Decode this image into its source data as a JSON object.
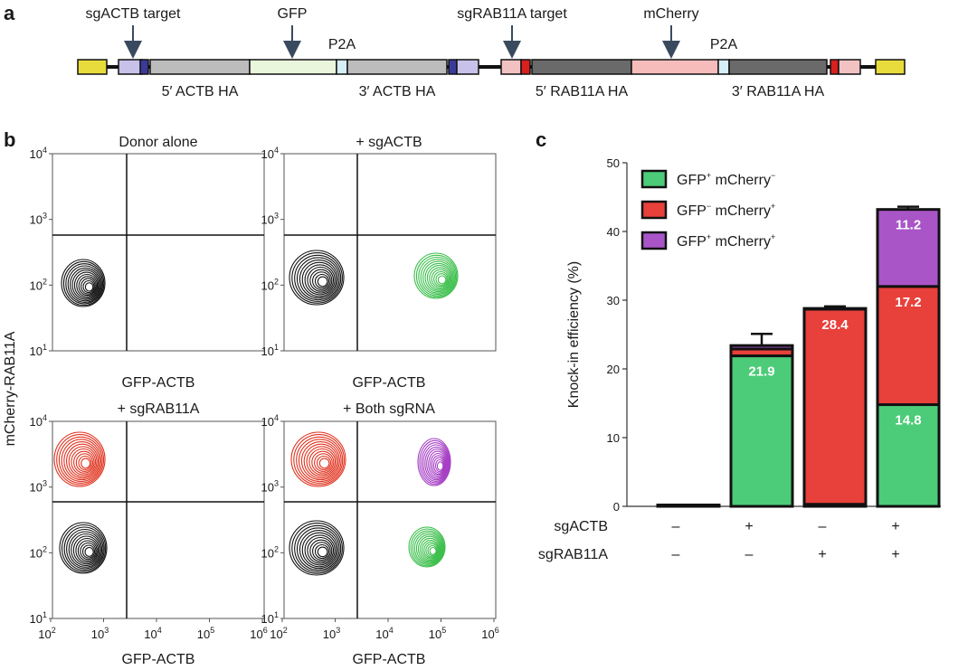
{
  "panel_a": {
    "letter": "a",
    "labels": {
      "sgactb_target": "sgACTB target",
      "gfp": "GFP",
      "p2a_1": "P2A",
      "sgrab11a_target": "sgRAB11A target",
      "mcherry": "mCherry",
      "p2a_2": "P2A",
      "actb_5ha": "5′ ACTB HA",
      "actb_3ha": "3′ ACTB HA",
      "rab11a_5ha": "5′ RAB11A HA",
      "rab11a_3ha": "3′ RAB11A HA"
    },
    "colors": {
      "itr": "#e8dc3c",
      "guide": "#c8c2ea",
      "guide_dark": "#3a3a9a",
      "actb_ha": "#bcbcbc",
      "gfp": "#eaf6dc",
      "p2a": "#d6eef8",
      "rab_guide": "#f2c2c2",
      "rab_guide_dark": "#d8201e",
      "rab_ha": "#6a6a6a",
      "mcherry": "#f6bcbc"
    }
  },
  "panel_b": {
    "letter": "b",
    "ylabel": "mCherry-RAB11A",
    "xlabel": "GFP-ACTB",
    "x_ticks": [
      "10",
      "10",
      "10",
      "10",
      "10"
    ],
    "x_tick_exponents": [
      "2",
      "3",
      "4",
      "5",
      "6"
    ],
    "y_ticks": [
      "10",
      "10",
      "10",
      "10"
    ],
    "y_tick_exponents": [
      "1",
      "2",
      "3",
      "4"
    ],
    "plots": [
      {
        "title": "Donor alone",
        "xlabel": "GFP-ACTB"
      },
      {
        "title": "+ sgACTB",
        "xlabel": "GFP-ACTB"
      },
      {
        "title": "+ sgRAB11A",
        "xlabel": "GFP-ACTB"
      },
      {
        "title": "+ Both sgRNA",
        "xlabel": "GFP-ACTB"
      }
    ],
    "colors": {
      "neg": "#111111",
      "gfp": "#3cbf4c",
      "mcherry": "#e0321e",
      "double": "#a63fc4"
    }
  },
  "panel_c": {
    "letter": "c",
    "chart_data": {
      "type": "bar",
      "stacked": true,
      "ylabel": "Knock-in efficiency (%)",
      "ylim": [
        0,
        50
      ],
      "y_ticks": [
        "0",
        "10",
        "20",
        "30",
        "40",
        "50"
      ],
      "conditions": [
        {
          "sgACTB": "–",
          "sgRAB11A": "–"
        },
        {
          "sgACTB": "+",
          "sgRAB11A": "–"
        },
        {
          "sgACTB": "–",
          "sgRAB11A": "+"
        },
        {
          "sgACTB": "+",
          "sgRAB11A": "+"
        }
      ],
      "row_labels": [
        "sgACTB",
        "sgRAB11A"
      ],
      "series": [
        {
          "name": "GFP⁺ mCherry⁻",
          "color": "#4ccb78",
          "values": [
            0.2,
            21.9,
            0.3,
            14.8
          ],
          "errors": [
            0,
            0,
            0,
            0.5
          ],
          "labels": [
            "",
            "21.9",
            "",
            "14.8"
          ]
        },
        {
          "name": "GFP⁻ mCherry⁺",
          "color": "#e8403a",
          "values": [
            0.0,
            1.0,
            28.4,
            17.2
          ],
          "errors": [
            0,
            0,
            0.4,
            1.5
          ],
          "labels": [
            "",
            "",
            "28.4",
            "17.2"
          ]
        },
        {
          "name": "GFP⁺ mCherry⁺",
          "color": "#a955c8",
          "values": [
            0.0,
            0.5,
            0.1,
            11.2
          ],
          "errors": [
            0,
            1.7,
            0,
            0.4
          ],
          "labels": [
            "",
            "",
            "",
            "11.2"
          ]
        }
      ],
      "legend": {
        "placement": "top-left"
      }
    },
    "legend_items": [
      {
        "text": "GFP",
        "sup1": "+",
        "text2": " mCherry",
        "sup2": "−",
        "color": "#4ccb78"
      },
      {
        "text": "GFP",
        "sup1": "−",
        "text2": " mCherry",
        "sup2": "+",
        "color": "#e8403a"
      },
      {
        "text": "GFP",
        "sup1": "+",
        "text2": " mCherry",
        "sup2": "+",
        "color": "#a955c8"
      }
    ]
  }
}
